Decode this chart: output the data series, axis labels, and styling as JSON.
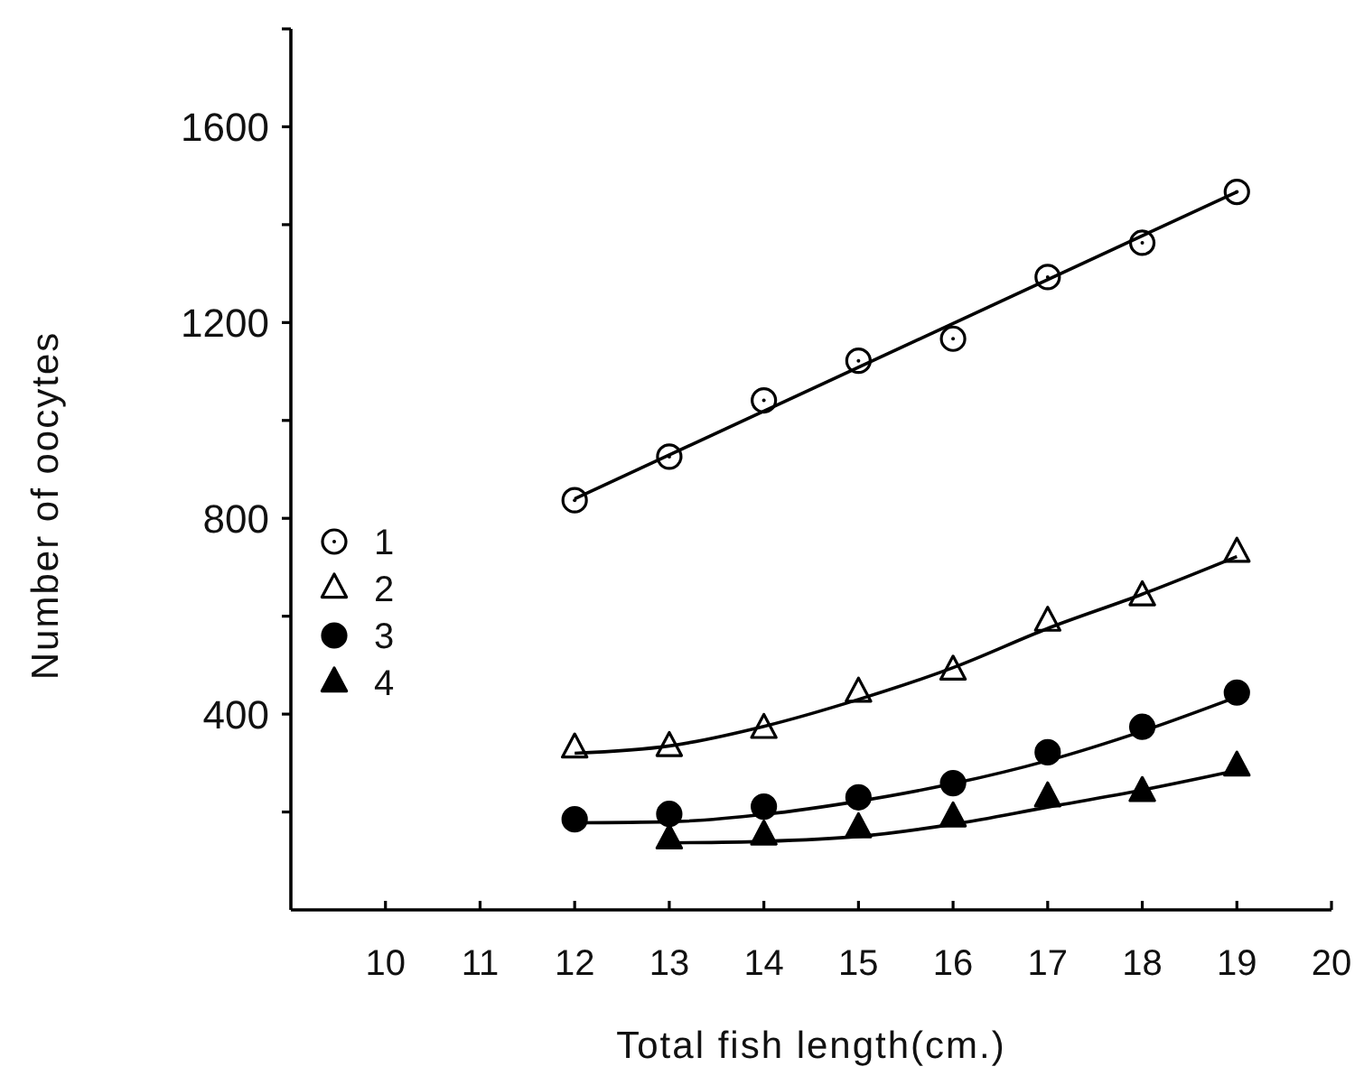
{
  "chart_data": {
    "type": "scatter",
    "xlabel": "Total fish length(cm.)",
    "ylabel": "Number of oocytes",
    "xlim": [
      9,
      20
    ],
    "xticks": [
      10,
      11,
      12,
      13,
      14,
      15,
      16,
      17,
      18,
      19,
      20
    ],
    "ylim": [
      0,
      1800
    ],
    "yticks": [
      {
        "value": 200,
        "label": null
      },
      400,
      {
        "value": 600,
        "label": null
      },
      800,
      {
        "value": 1000,
        "label": null
      },
      1200,
      {
        "value": 1400,
        "label": null
      },
      1600,
      {
        "value": 1800,
        "label": null
      }
    ],
    "legend": "left",
    "grid": false,
    "series": [
      {
        "name": "1",
        "marker": "circle",
        "color": "#000000",
        "x": [
          12,
          13,
          14,
          15,
          16,
          17,
          18,
          19
        ],
        "values": [
          837,
          926,
          1041,
          1122,
          1167,
          1293,
          1363,
          1467
        ]
      },
      {
        "name": "2",
        "marker": "triangle",
        "color": "#000000",
        "x": [
          12,
          13,
          14,
          15,
          16,
          17,
          18,
          19
        ],
        "values": [
          330,
          333,
          370,
          444,
          489,
          589,
          641,
          730
        ]
      },
      {
        "name": "3",
        "marker": "circle",
        "color": "#000000",
        "x": [
          12,
          13,
          14,
          15,
          16,
          17,
          18,
          19
        ],
        "values": [
          185,
          196,
          211,
          230,
          259,
          322,
          374,
          444
        ]
      },
      {
        "name": "4",
        "marker": "triangle",
        "color": "#000000",
        "x": [
          13,
          14,
          15,
          16,
          17,
          18,
          19
        ],
        "values": [
          144,
          152,
          167,
          189,
          230,
          241,
          293
        ]
      },
      {
        "type": "line",
        "marker": "none",
        "color": "#000000",
        "x": [
          12,
          19
        ],
        "values": [
          840,
          1467
        ]
      },
      {
        "type": "line",
        "marker": "none",
        "color": "#000000",
        "x": [
          12,
          13,
          14,
          15,
          16,
          17,
          18,
          19
        ],
        "values": [
          320,
          335,
          375,
          430,
          495,
          575,
          645,
          722
        ]
      },
      {
        "type": "line",
        "marker": "none",
        "color": "#000000",
        "x": [
          12,
          13,
          14,
          15,
          16,
          17,
          18,
          19
        ],
        "values": [
          178,
          180,
          195,
          222,
          258,
          305,
          365,
          435
        ]
      },
      {
        "type": "line",
        "marker": "none",
        "color": "#000000",
        "x": [
          13,
          14,
          15,
          16,
          17,
          18,
          19
        ],
        "values": [
          137,
          140,
          150,
          175,
          210,
          245,
          285
        ]
      }
    ]
  }
}
